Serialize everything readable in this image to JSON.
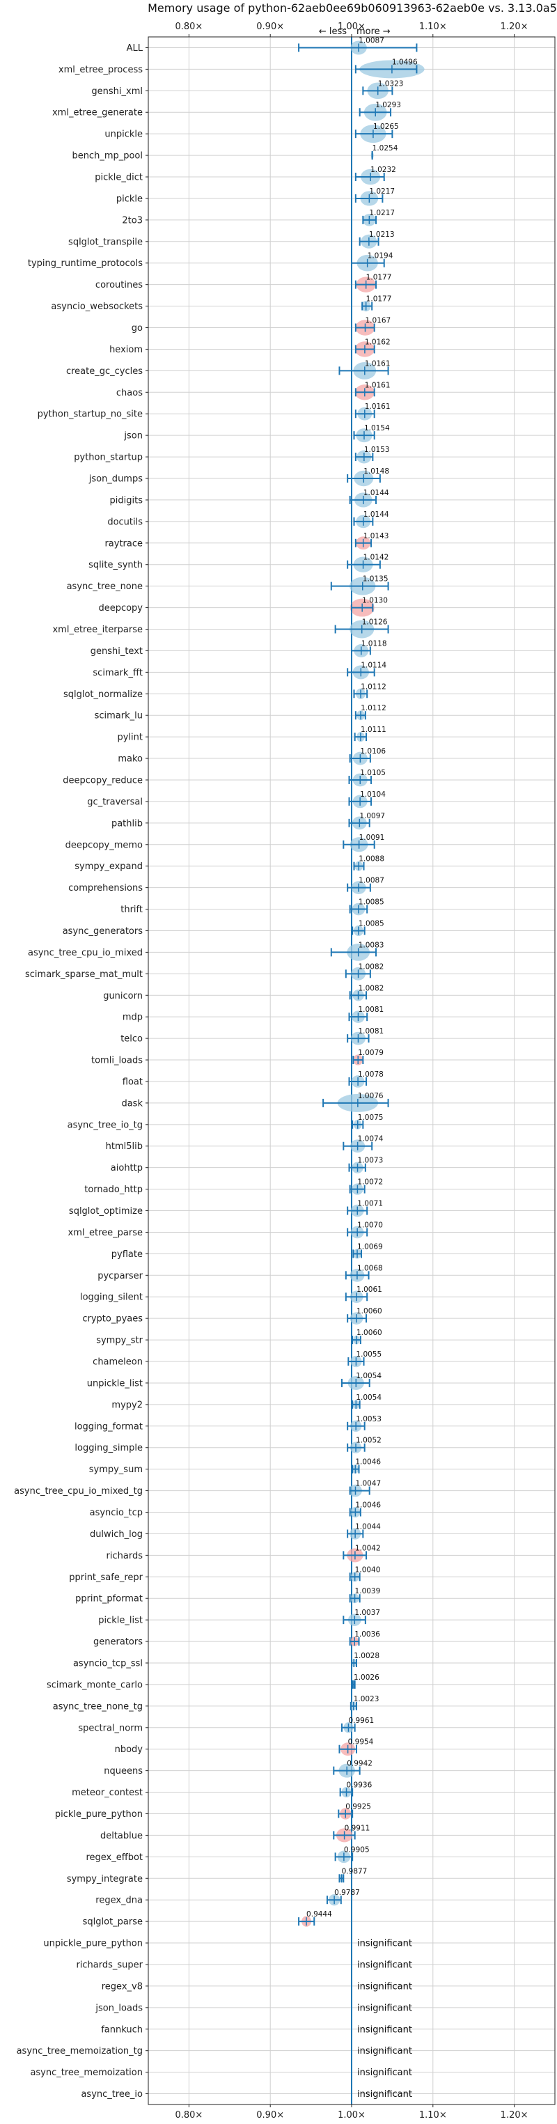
{
  "chart_data": {
    "type": "violin",
    "title": "Memory usage of python-62aeb0ee69b060913963-62aeb0e vs. 3.13.0a5",
    "direction_left": "← less",
    "direction_right": "more →",
    "xlim": [
      0.75,
      1.25
    ],
    "x_ticks": [
      {
        "value": 0.8,
        "label": "0.80×"
      },
      {
        "value": 0.9,
        "label": "0.90×"
      },
      {
        "value": 1.0,
        "label": "1.00×"
      },
      {
        "value": 1.1,
        "label": "1.10×"
      },
      {
        "value": 1.2,
        "label": "1.20×"
      }
    ],
    "grid": true,
    "insignificant_label": "insignificant",
    "colors": {
      "increase": "#9ecae1",
      "decrease": "#f4a6a6",
      "line": "#1f77b4"
    },
    "benchmarks": [
      {
        "name": "ALL",
        "mean": 1.0087,
        "err_lo": 0.935,
        "err_hi": 1.08,
        "spread": 0.01,
        "label": "1.0087",
        "color": "increase"
      },
      {
        "name": "xml_etree_process",
        "mean": 1.0496,
        "err_lo": 1.005,
        "err_hi": 1.08,
        "spread": 0.04,
        "label": "1.0496",
        "color": "increase"
      },
      {
        "name": "genshi_xml",
        "mean": 1.0323,
        "err_lo": 1.014,
        "err_hi": 1.05,
        "spread": 0.013,
        "label": "1.0323",
        "color": "increase"
      },
      {
        "name": "xml_etree_generate",
        "mean": 1.0293,
        "err_lo": 1.01,
        "err_hi": 1.048,
        "spread": 0.014,
        "label": "1.0293",
        "color": "increase"
      },
      {
        "name": "unpickle",
        "mean": 1.0265,
        "err_lo": 1.005,
        "err_hi": 1.05,
        "spread": 0.016,
        "label": "1.0265",
        "color": "increase"
      },
      {
        "name": "bench_mp_pool",
        "mean": 1.0254,
        "err_lo": 1.0254,
        "err_hi": 1.0254,
        "spread": 0.001,
        "label": "1.0254",
        "color": "increase"
      },
      {
        "name": "pickle_dict",
        "mean": 1.0232,
        "err_lo": 1.005,
        "err_hi": 1.04,
        "spread": 0.012,
        "label": "1.0232",
        "color": "increase"
      },
      {
        "name": "pickle",
        "mean": 1.0217,
        "err_lo": 1.005,
        "err_hi": 1.038,
        "spread": 0.011,
        "label": "1.0217",
        "color": "increase"
      },
      {
        "name": "2to3",
        "mean": 1.0217,
        "err_lo": 1.014,
        "err_hi": 1.03,
        "spread": 0.008,
        "label": "1.0217",
        "color": "increase"
      },
      {
        "name": "sqlglot_transpile",
        "mean": 1.0213,
        "err_lo": 1.01,
        "err_hi": 1.033,
        "spread": 0.01,
        "label": "1.0213",
        "color": "increase"
      },
      {
        "name": "typing_runtime_protocols",
        "mean": 1.0194,
        "err_lo": 1.0,
        "err_hi": 1.04,
        "spread": 0.013,
        "label": "1.0194",
        "color": "increase"
      },
      {
        "name": "coroutines",
        "mean": 1.0177,
        "err_lo": 1.005,
        "err_hi": 1.03,
        "spread": 0.012,
        "label": "1.0177",
        "color": "decrease"
      },
      {
        "name": "asyncio_websockets",
        "mean": 1.0177,
        "err_lo": 1.013,
        "err_hi": 1.025,
        "spread": 0.006,
        "label": "1.0177",
        "color": "increase"
      },
      {
        "name": "go",
        "mean": 1.0167,
        "err_lo": 1.005,
        "err_hi": 1.028,
        "spread": 0.012,
        "label": "1.0167",
        "color": "decrease"
      },
      {
        "name": "hexiom",
        "mean": 1.0162,
        "err_lo": 1.005,
        "err_hi": 1.028,
        "spread": 0.012,
        "label": "1.0162",
        "color": "decrease"
      },
      {
        "name": "create_gc_cycles",
        "mean": 1.0161,
        "err_lo": 0.985,
        "err_hi": 1.045,
        "spread": 0.014,
        "label": "1.0161",
        "color": "increase"
      },
      {
        "name": "chaos",
        "mean": 1.0161,
        "err_lo": 1.005,
        "err_hi": 1.028,
        "spread": 0.012,
        "label": "1.0161",
        "color": "decrease"
      },
      {
        "name": "python_startup_no_site",
        "mean": 1.0161,
        "err_lo": 1.005,
        "err_hi": 1.028,
        "spread": 0.009,
        "label": "1.0161",
        "color": "increase"
      },
      {
        "name": "json",
        "mean": 1.0154,
        "err_lo": 1.003,
        "err_hi": 1.028,
        "spread": 0.01,
        "label": "1.0154",
        "color": "increase"
      },
      {
        "name": "python_startup",
        "mean": 1.0153,
        "err_lo": 1.005,
        "err_hi": 1.026,
        "spread": 0.009,
        "label": "1.0153",
        "color": "increase"
      },
      {
        "name": "json_dumps",
        "mean": 1.0148,
        "err_lo": 0.995,
        "err_hi": 1.035,
        "spread": 0.012,
        "label": "1.0148",
        "color": "increase"
      },
      {
        "name": "pidigits",
        "mean": 1.0144,
        "err_lo": 0.998,
        "err_hi": 1.03,
        "spread": 0.011,
        "label": "1.0144",
        "color": "increase"
      },
      {
        "name": "docutils",
        "mean": 1.0144,
        "err_lo": 1.003,
        "err_hi": 1.026,
        "spread": 0.009,
        "label": "1.0144",
        "color": "increase"
      },
      {
        "name": "raytrace",
        "mean": 1.0143,
        "err_lo": 1.005,
        "err_hi": 1.024,
        "spread": 0.009,
        "label": "1.0143",
        "color": "decrease"
      },
      {
        "name": "sqlite_synth",
        "mean": 1.0142,
        "err_lo": 0.995,
        "err_hi": 1.035,
        "spread": 0.012,
        "label": "1.0142",
        "color": "increase"
      },
      {
        "name": "async_tree_none",
        "mean": 1.0135,
        "err_lo": 0.975,
        "err_hi": 1.045,
        "spread": 0.016,
        "label": "1.0135",
        "color": "increase"
      },
      {
        "name": "deepcopy",
        "mean": 1.013,
        "err_lo": 1.0,
        "err_hi": 1.026,
        "spread": 0.015,
        "label": "1.0130",
        "color": "decrease"
      },
      {
        "name": "xml_etree_iterparse",
        "mean": 1.0126,
        "err_lo": 0.98,
        "err_hi": 1.045,
        "spread": 0.015,
        "label": "1.0126",
        "color": "increase"
      },
      {
        "name": "genshi_text",
        "mean": 1.0118,
        "err_lo": 1.0,
        "err_hi": 1.023,
        "spread": 0.009,
        "label": "1.0118",
        "color": "increase"
      },
      {
        "name": "scimark_fft",
        "mean": 1.0114,
        "err_lo": 0.995,
        "err_hi": 1.028,
        "spread": 0.01,
        "label": "1.0114",
        "color": "increase"
      },
      {
        "name": "sqlglot_normalize",
        "mean": 1.0112,
        "err_lo": 1.003,
        "err_hi": 1.019,
        "spread": 0.006,
        "label": "1.0112",
        "color": "increase"
      },
      {
        "name": "scimark_lu",
        "mean": 1.0112,
        "err_lo": 1.005,
        "err_hi": 1.017,
        "spread": 0.005,
        "label": "1.0112",
        "color": "increase"
      },
      {
        "name": "pylint",
        "mean": 1.0111,
        "err_lo": 1.004,
        "err_hi": 1.018,
        "spread": 0.005,
        "label": "1.0111",
        "color": "increase"
      },
      {
        "name": "mako",
        "mean": 1.0106,
        "err_lo": 0.998,
        "err_hi": 1.023,
        "spread": 0.009,
        "label": "1.0106",
        "color": "increase"
      },
      {
        "name": "deepcopy_reduce",
        "mean": 1.0105,
        "err_lo": 0.997,
        "err_hi": 1.024,
        "spread": 0.009,
        "label": "1.0105",
        "color": "increase"
      },
      {
        "name": "gc_traversal",
        "mean": 1.0104,
        "err_lo": 0.997,
        "err_hi": 1.024,
        "spread": 0.009,
        "label": "1.0104",
        "color": "increase"
      },
      {
        "name": "pathlib",
        "mean": 1.0097,
        "err_lo": 0.997,
        "err_hi": 1.022,
        "spread": 0.009,
        "label": "1.0097",
        "color": "increase"
      },
      {
        "name": "deepcopy_memo",
        "mean": 1.0091,
        "err_lo": 0.99,
        "err_hi": 1.028,
        "spread": 0.011,
        "label": "1.0091",
        "color": "increase"
      },
      {
        "name": "sympy_expand",
        "mean": 1.0088,
        "err_lo": 1.003,
        "err_hi": 1.015,
        "spread": 0.005,
        "label": "1.0088",
        "color": "increase"
      },
      {
        "name": "comprehensions",
        "mean": 1.0087,
        "err_lo": 0.995,
        "err_hi": 1.023,
        "spread": 0.009,
        "label": "1.0087",
        "color": "increase"
      },
      {
        "name": "thrift",
        "mean": 1.0085,
        "err_lo": 0.998,
        "err_hi": 1.019,
        "spread": 0.008,
        "label": "1.0085",
        "color": "increase"
      },
      {
        "name": "async_generators",
        "mean": 1.0085,
        "err_lo": 1.001,
        "err_hi": 1.016,
        "spread": 0.006,
        "label": "1.0085",
        "color": "increase"
      },
      {
        "name": "async_tree_cpu_io_mixed",
        "mean": 1.0083,
        "err_lo": 0.975,
        "err_hi": 1.03,
        "spread": 0.014,
        "label": "1.0083",
        "color": "increase"
      },
      {
        "name": "scimark_sparse_mat_mult",
        "mean": 1.0082,
        "err_lo": 0.993,
        "err_hi": 1.023,
        "spread": 0.009,
        "label": "1.0082",
        "color": "increase"
      },
      {
        "name": "gunicorn",
        "mean": 1.0082,
        "err_lo": 0.998,
        "err_hi": 1.018,
        "spread": 0.007,
        "label": "1.0082",
        "color": "increase"
      },
      {
        "name": "mdp",
        "mean": 1.0081,
        "err_lo": 0.997,
        "err_hi": 1.019,
        "spread": 0.008,
        "label": "1.0081",
        "color": "increase"
      },
      {
        "name": "telco",
        "mean": 1.0081,
        "err_lo": 0.995,
        "err_hi": 1.021,
        "spread": 0.009,
        "label": "1.0081",
        "color": "increase"
      },
      {
        "name": "tomli_loads",
        "mean": 1.0079,
        "err_lo": 1.002,
        "err_hi": 1.014,
        "spread": 0.006,
        "label": "1.0079",
        "color": "decrease"
      },
      {
        "name": "float",
        "mean": 1.0078,
        "err_lo": 0.997,
        "err_hi": 1.018,
        "spread": 0.008,
        "label": "1.0078",
        "color": "increase"
      },
      {
        "name": "dask",
        "mean": 1.0076,
        "err_lo": 0.965,
        "err_hi": 1.045,
        "spread": 0.025,
        "label": "1.0076",
        "color": "increase"
      },
      {
        "name": "async_tree_io_tg",
        "mean": 1.0075,
        "err_lo": 1.001,
        "err_hi": 1.014,
        "spread": 0.005,
        "label": "1.0075",
        "color": "increase"
      },
      {
        "name": "html5lib",
        "mean": 1.0074,
        "err_lo": 0.99,
        "err_hi": 1.025,
        "spread": 0.009,
        "label": "1.0074",
        "color": "increase"
      },
      {
        "name": "aiohttp",
        "mean": 1.0073,
        "err_lo": 0.997,
        "err_hi": 1.017,
        "spread": 0.007,
        "label": "1.0073",
        "color": "increase"
      },
      {
        "name": "tornado_http",
        "mean": 1.0072,
        "err_lo": 0.998,
        "err_hi": 1.016,
        "spread": 0.007,
        "label": "1.0072",
        "color": "increase"
      },
      {
        "name": "sqlglot_optimize",
        "mean": 1.0071,
        "err_lo": 0.995,
        "err_hi": 1.019,
        "spread": 0.008,
        "label": "1.0071",
        "color": "increase"
      },
      {
        "name": "xml_etree_parse",
        "mean": 1.007,
        "err_lo": 0.995,
        "err_hi": 1.019,
        "spread": 0.008,
        "label": "1.0070",
        "color": "increase"
      },
      {
        "name": "pyflate",
        "mean": 1.0069,
        "err_lo": 1.002,
        "err_hi": 1.012,
        "spread": 0.005,
        "label": "1.0069",
        "color": "increase"
      },
      {
        "name": "pycparser",
        "mean": 1.0068,
        "err_lo": 0.993,
        "err_hi": 1.021,
        "spread": 0.009,
        "label": "1.0068",
        "color": "increase"
      },
      {
        "name": "logging_silent",
        "mean": 1.0061,
        "err_lo": 0.993,
        "err_hi": 1.019,
        "spread": 0.008,
        "label": "1.0061",
        "color": "increase"
      },
      {
        "name": "crypto_pyaes",
        "mean": 1.006,
        "err_lo": 0.995,
        "err_hi": 1.018,
        "spread": 0.008,
        "label": "1.0060",
        "color": "increase"
      },
      {
        "name": "sympy_str",
        "mean": 1.006,
        "err_lo": 1.001,
        "err_hi": 1.011,
        "spread": 0.004,
        "label": "1.0060",
        "color": "increase"
      },
      {
        "name": "chameleon",
        "mean": 1.0055,
        "err_lo": 0.996,
        "err_hi": 1.015,
        "spread": 0.007,
        "label": "1.0055",
        "color": "increase"
      },
      {
        "name": "unpickle_list",
        "mean": 1.0054,
        "err_lo": 0.988,
        "err_hi": 1.022,
        "spread": 0.01,
        "label": "1.0054",
        "color": "increase"
      },
      {
        "name": "mypy2",
        "mean": 1.0054,
        "err_lo": 1.001,
        "err_hi": 1.01,
        "spread": 0.004,
        "label": "1.0054",
        "color": "increase"
      },
      {
        "name": "logging_format",
        "mean": 1.0053,
        "err_lo": 0.995,
        "err_hi": 1.016,
        "spread": 0.007,
        "label": "1.0053",
        "color": "increase"
      },
      {
        "name": "logging_simple",
        "mean": 1.0052,
        "err_lo": 0.995,
        "err_hi": 1.016,
        "spread": 0.007,
        "label": "1.0052",
        "color": "increase"
      },
      {
        "name": "sympy_sum",
        "mean": 1.0046,
        "err_lo": 1.001,
        "err_hi": 1.009,
        "spread": 0.004,
        "label": "1.0046",
        "color": "increase"
      },
      {
        "name": "async_tree_cpu_io_mixed_tg",
        "mean": 1.0047,
        "err_lo": 0.998,
        "err_hi": 1.022,
        "spread": 0.008,
        "label": "1.0047",
        "color": "increase"
      },
      {
        "name": "asyncio_tcp",
        "mean": 1.0046,
        "err_lo": 0.998,
        "err_hi": 1.011,
        "spread": 0.006,
        "label": "1.0046",
        "color": "increase"
      },
      {
        "name": "dulwich_log",
        "mean": 1.0044,
        "err_lo": 0.995,
        "err_hi": 1.014,
        "spread": 0.007,
        "label": "1.0044",
        "color": "increase"
      },
      {
        "name": "richards",
        "mean": 1.0042,
        "err_lo": 0.99,
        "err_hi": 1.018,
        "spread": 0.01,
        "label": "1.0042",
        "color": "decrease"
      },
      {
        "name": "pprint_safe_repr",
        "mean": 1.004,
        "err_lo": 0.998,
        "err_hi": 1.01,
        "spread": 0.005,
        "label": "1.0040",
        "color": "increase"
      },
      {
        "name": "pprint_pformat",
        "mean": 1.0039,
        "err_lo": 0.998,
        "err_hi": 1.01,
        "spread": 0.005,
        "label": "1.0039",
        "color": "increase"
      },
      {
        "name": "pickle_list",
        "mean": 1.0037,
        "err_lo": 0.99,
        "err_hi": 1.017,
        "spread": 0.008,
        "label": "1.0037",
        "color": "increase"
      },
      {
        "name": "generators",
        "mean": 1.0036,
        "err_lo": 0.998,
        "err_hi": 1.009,
        "spread": 0.005,
        "label": "1.0036",
        "color": "decrease"
      },
      {
        "name": "asyncio_tcp_ssl",
        "mean": 1.0028,
        "err_lo": 1.0,
        "err_hi": 1.006,
        "spread": 0.003,
        "label": "1.0028",
        "color": "increase"
      },
      {
        "name": "scimark_monte_carlo",
        "mean": 1.0026,
        "err_lo": 1.001,
        "err_hi": 1.004,
        "spread": 0.002,
        "label": "1.0026",
        "color": "increase"
      },
      {
        "name": "async_tree_none_tg",
        "mean": 1.0023,
        "err_lo": 0.999,
        "err_hi": 1.006,
        "spread": 0.004,
        "label": "1.0023",
        "color": "increase"
      },
      {
        "name": "spectral_norm",
        "mean": 0.9961,
        "err_lo": 0.988,
        "err_hi": 1.004,
        "spread": 0.006,
        "label": "0.9961",
        "color": "increase"
      },
      {
        "name": "nbody",
        "mean": 0.9954,
        "err_lo": 0.985,
        "err_hi": 1.006,
        "spread": 0.009,
        "label": "0.9954",
        "color": "decrease"
      },
      {
        "name": "nqueens",
        "mean": 0.9942,
        "err_lo": 0.978,
        "err_hi": 1.01,
        "spread": 0.01,
        "label": "0.9942",
        "color": "increase"
      },
      {
        "name": "meteor_contest",
        "mean": 0.9936,
        "err_lo": 0.986,
        "err_hi": 1.001,
        "spread": 0.006,
        "label": "0.9936",
        "color": "increase"
      },
      {
        "name": "pickle_pure_python",
        "mean": 0.9925,
        "err_lo": 0.984,
        "err_hi": 1.001,
        "spread": 0.007,
        "label": "0.9925",
        "color": "decrease"
      },
      {
        "name": "deltablue",
        "mean": 0.9911,
        "err_lo": 0.978,
        "err_hi": 1.004,
        "spread": 0.01,
        "label": "0.9911",
        "color": "decrease"
      },
      {
        "name": "regex_effbot",
        "mean": 0.9905,
        "err_lo": 0.98,
        "err_hi": 1.001,
        "spread": 0.008,
        "label": "0.9905",
        "color": "increase"
      },
      {
        "name": "sympy_integrate",
        "mean": 0.9877,
        "err_lo": 0.985,
        "err_hi": 0.99,
        "spread": 0.003,
        "label": "0.9877",
        "color": "increase"
      },
      {
        "name": "regex_dna",
        "mean": 0.9787,
        "err_lo": 0.97,
        "err_hi": 0.987,
        "spread": 0.007,
        "label": "0.9787",
        "color": "increase"
      },
      {
        "name": "sqlglot_parse",
        "mean": 0.9444,
        "err_lo": 0.935,
        "err_hi": 0.954,
        "spread": 0.006,
        "label": "0.9444",
        "color": "decrease"
      },
      {
        "name": "unpickle_pure_python",
        "insignificant": true
      },
      {
        "name": "richards_super",
        "insignificant": true
      },
      {
        "name": "regex_v8",
        "insignificant": true
      },
      {
        "name": "json_loads",
        "insignificant": true
      },
      {
        "name": "fannkuch",
        "insignificant": true
      },
      {
        "name": "async_tree_memoization_tg",
        "insignificant": true
      },
      {
        "name": "async_tree_memoization",
        "insignificant": true
      },
      {
        "name": "async_tree_io",
        "insignificant": true
      }
    ]
  }
}
